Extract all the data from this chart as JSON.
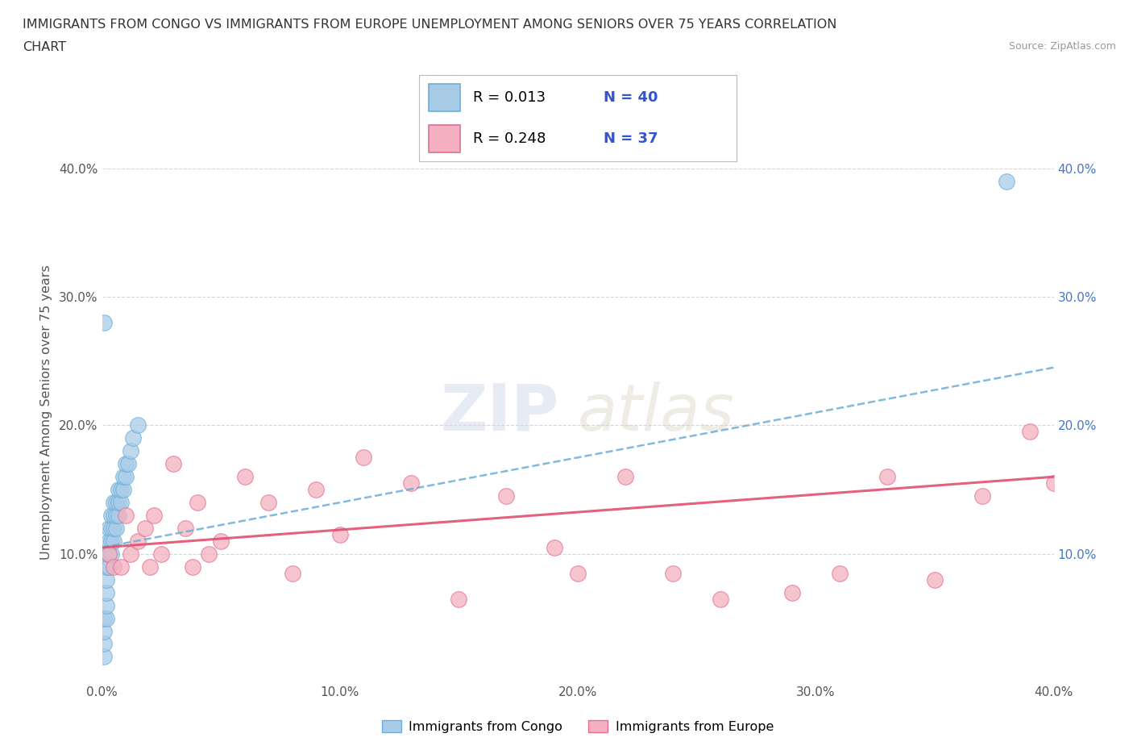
{
  "title_line1": "IMMIGRANTS FROM CONGO VS IMMIGRANTS FROM EUROPE UNEMPLOYMENT AMONG SENIORS OVER 75 YEARS CORRELATION",
  "title_line2": "CHART",
  "source": "Source: ZipAtlas.com",
  "ylabel": "Unemployment Among Seniors over 75 years",
  "xlim": [
    0.0,
    0.4
  ],
  "ylim": [
    0.0,
    0.42
  ],
  "xticks": [
    0.0,
    0.1,
    0.2,
    0.3,
    0.4
  ],
  "yticks": [
    0.1,
    0.2,
    0.3,
    0.4
  ],
  "xtick_labels": [
    "0.0%",
    "10.0%",
    "20.0%",
    "30.0%",
    "40.0%"
  ],
  "ytick_labels_left": [
    "10.0%",
    "20.0%",
    "30.0%",
    "40.0%"
  ],
  "ytick_labels_right": [
    "10.0%",
    "20.0%",
    "30.0%",
    "40.0%"
  ],
  "congo_face": "#a8cce8",
  "congo_edge": "#6baed6",
  "europe_face": "#f4b0c0",
  "europe_edge": "#e07090",
  "trend_congo_color": "#6baed6",
  "trend_europe_color": "#e05070",
  "R_congo": 0.013,
  "N_congo": 40,
  "R_europe": 0.248,
  "N_europe": 37,
  "legend_label_congo": "Immigrants from Congo",
  "legend_label_europe": "Immigrants from Europe",
  "watermark_zip": "ZIP",
  "watermark_atlas": "atlas",
  "background_color": "#ffffff",
  "grid_color": "#cccccc",
  "title_color": "#333333",
  "tick_color_left": "#555555",
  "tick_color_right": "#4477cc",
  "r_text_color": "#000000",
  "n_text_color": "#3355cc",
  "legend_box_color": "#dddddd",
  "congo_x": [
    0.001,
    0.001,
    0.001,
    0.001,
    0.002,
    0.002,
    0.002,
    0.002,
    0.002,
    0.003,
    0.003,
    0.003,
    0.003,
    0.003,
    0.004,
    0.004,
    0.004,
    0.004,
    0.005,
    0.005,
    0.005,
    0.005,
    0.006,
    0.006,
    0.006,
    0.007,
    0.007,
    0.007,
    0.008,
    0.008,
    0.009,
    0.009,
    0.01,
    0.01,
    0.011,
    0.012,
    0.013,
    0.015,
    0.001,
    0.38
  ],
  "congo_y": [
    0.02,
    0.03,
    0.04,
    0.05,
    0.05,
    0.06,
    0.07,
    0.08,
    0.09,
    0.09,
    0.1,
    0.1,
    0.11,
    0.12,
    0.1,
    0.11,
    0.12,
    0.13,
    0.11,
    0.12,
    0.13,
    0.14,
    0.12,
    0.13,
    0.14,
    0.13,
    0.14,
    0.15,
    0.14,
    0.15,
    0.15,
    0.16,
    0.16,
    0.17,
    0.17,
    0.18,
    0.19,
    0.2,
    0.28,
    0.39
  ],
  "europe_x": [
    0.003,
    0.005,
    0.008,
    0.01,
    0.012,
    0.015,
    0.018,
    0.02,
    0.022,
    0.025,
    0.03,
    0.035,
    0.038,
    0.04,
    0.045,
    0.05,
    0.06,
    0.07,
    0.08,
    0.09,
    0.1,
    0.11,
    0.13,
    0.15,
    0.17,
    0.19,
    0.2,
    0.22,
    0.24,
    0.26,
    0.29,
    0.31,
    0.33,
    0.35,
    0.37,
    0.39,
    0.4
  ],
  "europe_y": [
    0.1,
    0.09,
    0.09,
    0.13,
    0.1,
    0.11,
    0.12,
    0.09,
    0.13,
    0.1,
    0.17,
    0.12,
    0.09,
    0.14,
    0.1,
    0.11,
    0.16,
    0.14,
    0.085,
    0.15,
    0.115,
    0.175,
    0.155,
    0.065,
    0.145,
    0.105,
    0.085,
    0.16,
    0.085,
    0.065,
    0.07,
    0.085,
    0.16,
    0.08,
    0.145,
    0.195,
    0.155
  ],
  "trend_congo_start_y": 0.105,
  "trend_congo_end_y": 0.245,
  "trend_europe_start_y": 0.105,
  "trend_europe_end_y": 0.16
}
